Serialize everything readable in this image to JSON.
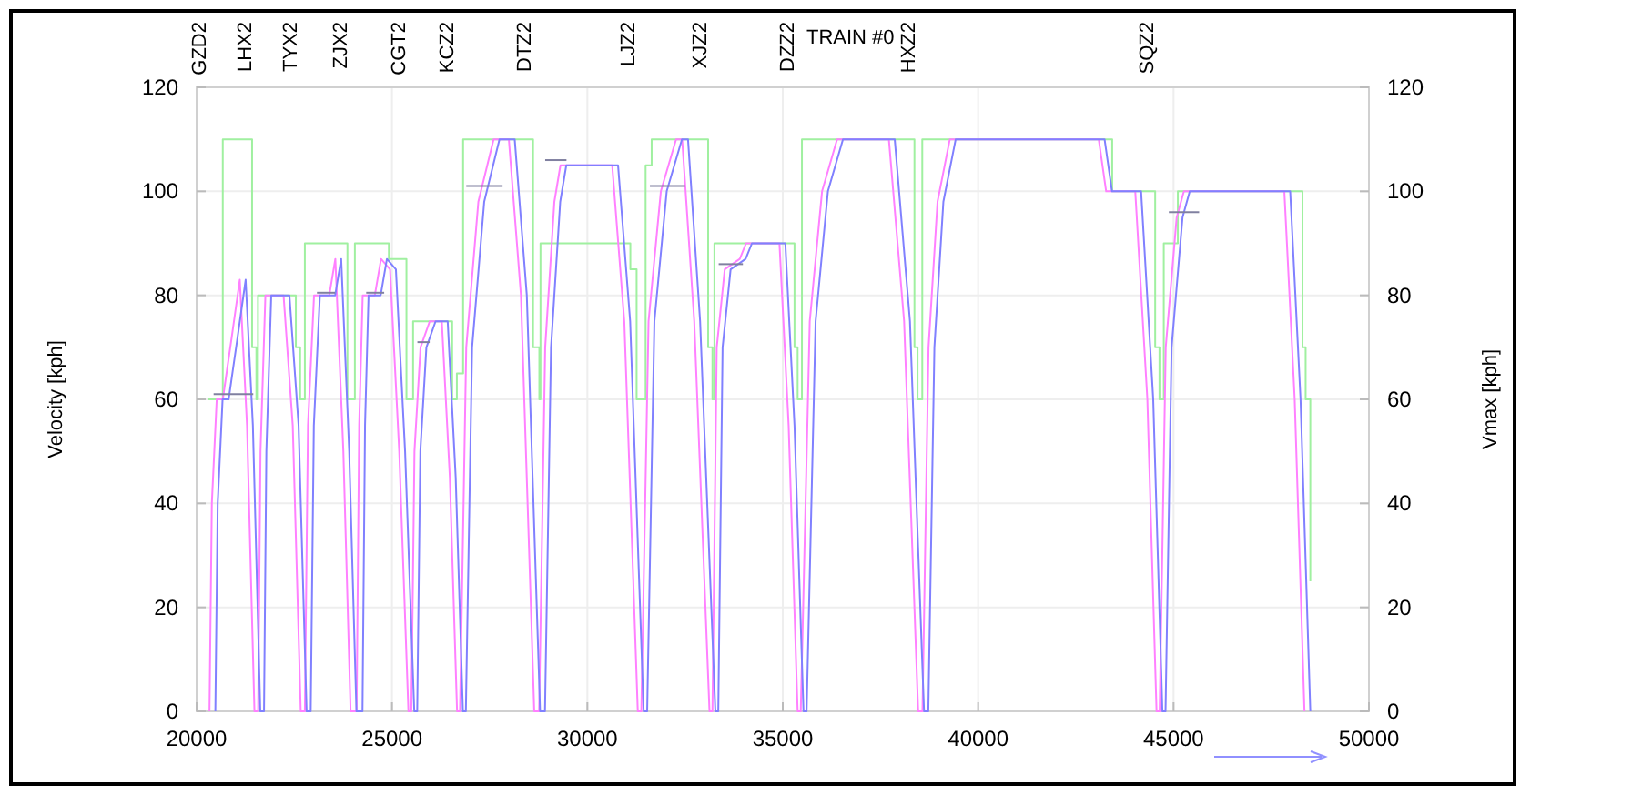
{
  "chart_data": {
    "type": "line",
    "title": "TRAIN #0",
    "ylabel": "Velocity [kph]",
    "y2label": "Vmax [kph]",
    "xlim": [
      20000,
      50000
    ],
    "xticks": [
      20000,
      25000,
      30000,
      35000,
      40000,
      45000,
      50000
    ],
    "ylim": [
      0,
      120
    ],
    "yticks": [
      0,
      20,
      40,
      60,
      80,
      100,
      120
    ],
    "y2lim": [
      0,
      120
    ],
    "y2ticks": [
      0,
      20,
      40,
      60,
      80,
      100,
      120
    ],
    "grid": true,
    "annotations": [
      "GZD2",
      "LHX2",
      "TYX2",
      "ZJX2",
      "CGT2",
      "KCZ2",
      "DTZ2",
      "LJZ2",
      "XJZ2",
      "DZZ2",
      "HXZ2",
      "SQZ2"
    ],
    "series": [
      {
        "type": "step",
        "color": "#a0f0a0",
        "x": [
          20300,
          20670,
          21420,
          21530,
          21570,
          22540,
          22650,
          22770,
          23860,
          24050,
          24920,
          25370,
          25540,
          26540,
          26660,
          26820,
          28610,
          28770,
          28800,
          31100,
          31260,
          31490,
          31645,
          33090,
          33200,
          33250,
          35300,
          35380,
          35490,
          38370,
          38450,
          38570,
          43430,
          44530,
          44640,
          44750,
          45110,
          48300,
          48380,
          48500
        ],
        "values": [
          60,
          110,
          70,
          60,
          80,
          70,
          60,
          90,
          60,
          90,
          87,
          60,
          75,
          60,
          65,
          110,
          70,
          60,
          90,
          85,
          60,
          105,
          110,
          70,
          60,
          90,
          70,
          60,
          110,
          70,
          60,
          110,
          100,
          70,
          60,
          90,
          100,
          70,
          60,
          25
        ]
      },
      {
        "color": "#ff80ff",
        "x": [
          20330,
          20390,
          20515,
          20670,
          20900,
          21105,
          21290,
          21480,
          21575,
          21635,
          21760,
          22225,
          22460,
          22665,
          22770,
          22850,
          23005,
          23395,
          23550,
          23755,
          23940,
          24095,
          24160,
          24250,
          24560,
          24720,
          24950,
          25185,
          25420,
          25495,
          25575,
          25730,
          25965,
          26275,
          26480,
          26665,
          26740,
          26900,
          27210,
          27600,
          27990,
          28300,
          28640,
          28765,
          28920,
          29155,
          29310,
          30635,
          30945,
          31290,
          31380,
          31565,
          31880,
          32270,
          32425,
          32735,
          33125,
          33200,
          33310,
          33515,
          33900,
          34060,
          34915,
          35150,
          35380,
          35460,
          35690,
          36005,
          36390,
          37715,
          38105,
          38465,
          38575,
          38730,
          38960,
          39275,
          43085,
          43275,
          44020,
          44330,
          44565,
          44645,
          44800,
          45080,
          45265,
          47835,
          48100,
          48350
        ],
        "values": [
          0,
          40,
          60,
          60,
          72,
          83,
          55,
          0,
          0,
          50,
          80,
          80,
          55,
          0,
          0,
          55,
          80,
          80,
          87,
          50,
          0,
          0,
          55,
          80,
          80,
          87,
          85,
          50,
          0,
          0,
          50,
          70,
          75,
          75,
          45,
          0,
          0,
          70,
          98,
          110,
          110,
          80,
          0,
          0,
          70,
          98,
          105,
          105,
          75,
          0,
          0,
          75,
          100,
          110,
          110,
          75,
          0,
          0,
          70,
          85,
          87,
          90,
          90,
          55,
          0,
          0,
          75,
          100,
          110,
          110,
          75,
          0,
          0,
          70,
          98,
          110,
          110,
          100,
          100,
          60,
          0,
          0,
          70,
          95,
          100,
          100,
          60,
          0
        ]
      },
      {
        "color": "#8080ff",
        "x": [
          20480,
          20540,
          20665,
          20820,
          21050,
          21255,
          21440,
          21630,
          21725,
          21785,
          21910,
          22375,
          22610,
          22815,
          22920,
          23000,
          23155,
          23545,
          23700,
          23905,
          24090,
          24245,
          24310,
          24400,
          24710,
          24870,
          25100,
          25335,
          25570,
          25645,
          25725,
          25880,
          26115,
          26425,
          26630,
          26815,
          26890,
          27050,
          27360,
          27750,
          28140,
          28450,
          28790,
          28915,
          29070,
          29305,
          29460,
          30785,
          31095,
          31440,
          31530,
          31715,
          32030,
          32420,
          32575,
          32885,
          33275,
          33350,
          33460,
          33665,
          34050,
          34210,
          35065,
          35300,
          35530,
          35610,
          35840,
          36155,
          36540,
          37865,
          38255,
          38615,
          38725,
          38880,
          39110,
          39425,
          43235,
          43425,
          44170,
          44480,
          44715,
          44795,
          44950,
          45230,
          45415,
          47985,
          48250,
          48500
        ],
        "values": [
          0,
          40,
          60,
          60,
          72,
          83,
          55,
          0,
          0,
          50,
          80,
          80,
          55,
          0,
          0,
          55,
          80,
          80,
          87,
          50,
          0,
          0,
          55,
          80,
          80,
          87,
          85,
          50,
          0,
          0,
          50,
          70,
          75,
          75,
          45,
          0,
          0,
          70,
          98,
          110,
          110,
          80,
          0,
          0,
          70,
          98,
          105,
          105,
          75,
          0,
          0,
          75,
          100,
          110,
          110,
          75,
          0,
          0,
          70,
          85,
          87,
          90,
          90,
          55,
          0,
          0,
          75,
          100,
          110,
          110,
          75,
          0,
          0,
          70,
          98,
          110,
          110,
          100,
          100,
          60,
          0,
          0,
          70,
          95,
          100,
          100,
          60,
          0
        ]
      },
      {
        "color": "#8080a0",
        "x": [
          20435,
          21450
        ],
        "values": [
          61,
          61
        ]
      },
      {
        "color": "#8080a0",
        "x": [
          23080,
          23545
        ],
        "values": [
          80.5,
          80.5
        ]
      },
      {
        "color": "#8080a0",
        "x": [
          24340,
          24800
        ],
        "values": [
          80.5,
          80.5
        ]
      },
      {
        "color": "#8080a0",
        "x": [
          25650,
          25965
        ],
        "values": [
          71,
          71
        ]
      },
      {
        "color": "#8080a0",
        "x": [
          26900,
          27830
        ],
        "values": [
          101,
          101
        ]
      },
      {
        "color": "#8080a0",
        "x": [
          28920,
          29465
        ],
        "values": [
          106,
          106
        ]
      },
      {
        "color": "#8080a0",
        "x": [
          31600,
          32500
        ],
        "values": [
          101,
          101
        ]
      },
      {
        "color": "#8080a0",
        "x": [
          33360,
          33980
        ],
        "values": [
          86,
          86
        ]
      },
      {
        "color": "#8080a0",
        "x": [
          44880,
          45655
        ],
        "values": [
          96,
          96
        ]
      }
    ]
  }
}
